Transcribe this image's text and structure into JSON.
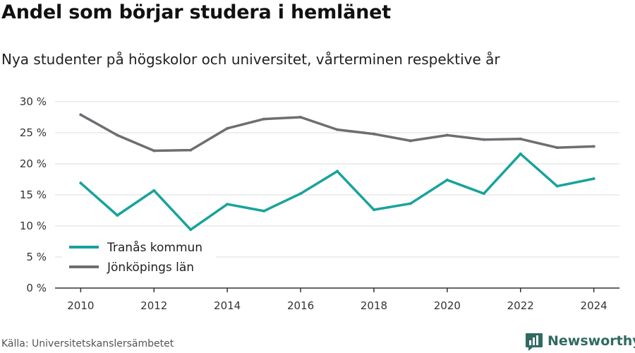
{
  "header": {
    "title": "Andel som börjar studera i hemlänet",
    "subtitle": "Nya studenter på högskolor och universitet, vårterminen respektive år"
  },
  "footer": {
    "source": "Källa: Universitetskanslersämbetet",
    "brand": "Newsworthy",
    "brand_icon": "bar-chart-logo-icon",
    "brand_color": "#2f6a63"
  },
  "chart_data": {
    "type": "line",
    "x": [
      2010,
      2011,
      2012,
      2013,
      2014,
      2015,
      2016,
      2017,
      2018,
      2019,
      2020,
      2021,
      2022,
      2023,
      2024
    ],
    "series": [
      {
        "name": "Tranås kommun",
        "color": "#18a39b",
        "values": [
          16.9,
          11.7,
          15.7,
          9.4,
          13.5,
          12.4,
          15.2,
          18.8,
          12.6,
          13.6,
          17.4,
          15.2,
          21.6,
          16.4,
          17.6
        ]
      },
      {
        "name": "Jönköpings län",
        "color": "#6e6d72",
        "values": [
          27.9,
          24.6,
          22.1,
          22.2,
          25.7,
          27.2,
          27.5,
          25.5,
          24.8,
          23.7,
          24.6,
          23.9,
          24.0,
          22.6,
          22.8
        ]
      }
    ],
    "xticks": [
      2010,
      2012,
      2014,
      2016,
      2018,
      2020,
      2022,
      2024
    ],
    "xtick_labels": [
      "2010",
      "2012",
      "2014",
      "2016",
      "2018",
      "2020",
      "2022",
      "2024"
    ],
    "yticks": [
      0,
      5,
      10,
      15,
      20,
      25,
      30
    ],
    "ytick_labels": [
      "0 %",
      "5 %",
      "10 %",
      "15 %",
      "20 %",
      "25 %",
      "30 %"
    ],
    "ylim": [
      0,
      30
    ],
    "xlim": [
      2009.3,
      2024.7
    ],
    "grid": true,
    "legend_position": "bottom-left",
    "xlabel": "",
    "ylabel": ""
  }
}
